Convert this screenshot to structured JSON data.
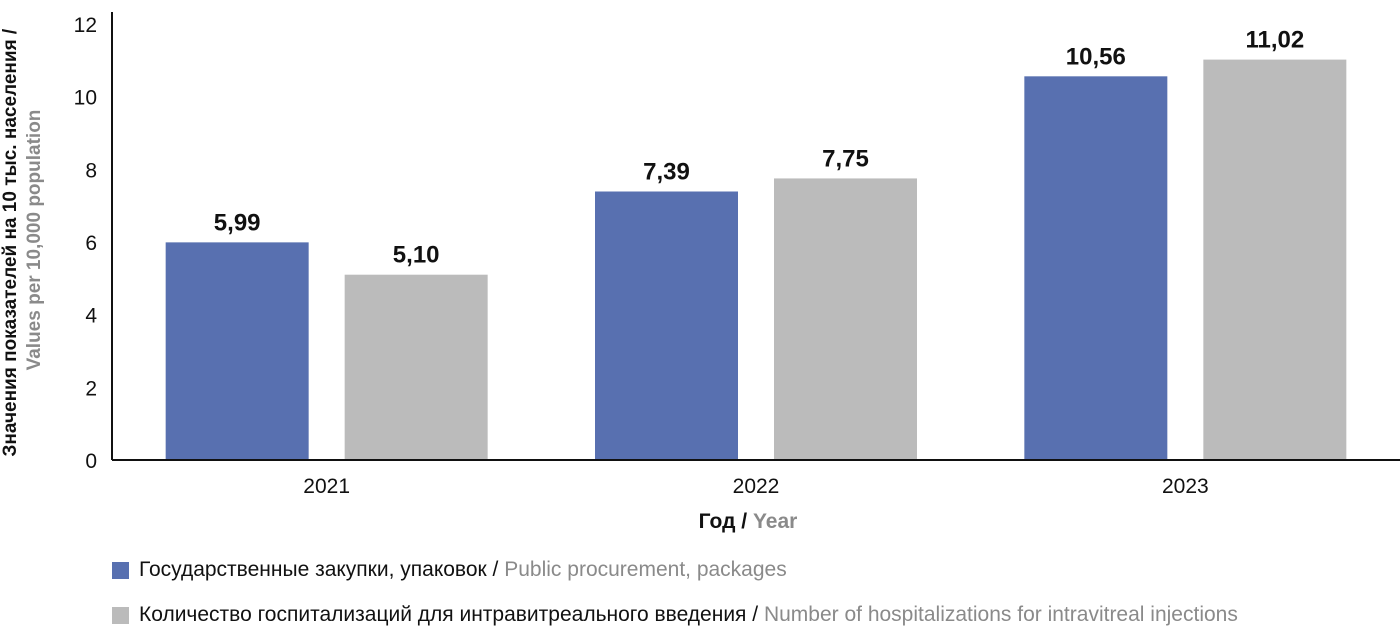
{
  "chart_data": {
    "type": "bar",
    "categories": [
      "2021",
      "2022",
      "2023"
    ],
    "series": [
      {
        "name_ru": "Государственные закупки, упаковок",
        "name_en": "Public procurement, packages",
        "color": "#5870b0",
        "values": [
          5.99,
          7.39,
          10.56
        ],
        "labels": [
          "5,99",
          "7,39",
          "10,56"
        ]
      },
      {
        "name_ru": "Количество госпитализаций для интравитреального введения",
        "name_en": "Number of hospitalizations for intravitreal injections",
        "color": "#bbbbbb",
        "values": [
          5.1,
          7.75,
          11.02
        ],
        "labels": [
          "5,10",
          "7,75",
          "11,02"
        ]
      }
    ],
    "ylim": [
      0,
      12
    ],
    "yticks": [
      0,
      2,
      4,
      6,
      8,
      10,
      12
    ],
    "ylabel_ru": "Значения показателей на 10 тыс. населения /",
    "ylabel_en": "Values per 10,000 population",
    "xlabel_ru": "Год",
    "xlabel_en": "Year",
    "grid": false,
    "legend_position": "bottom-left"
  }
}
